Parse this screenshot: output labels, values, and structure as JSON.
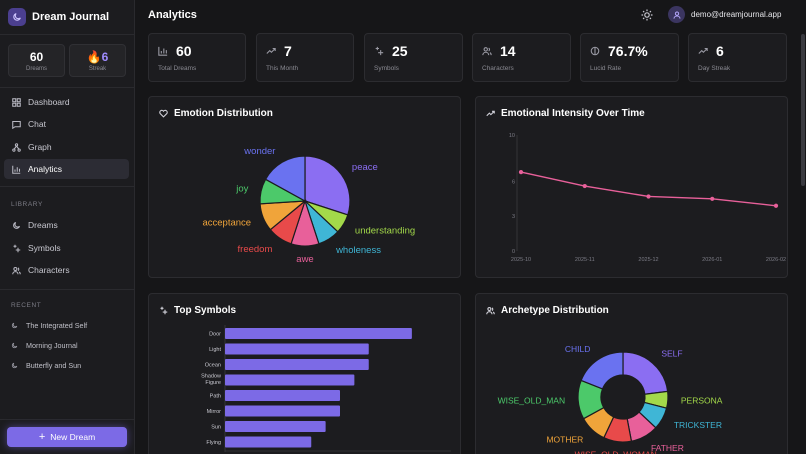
{
  "sidebar": {
    "app_name": "Dream Journal",
    "mini_stats": [
      {
        "value": "60",
        "label": "Dreams"
      },
      {
        "value": "🔥6",
        "label": "Streak"
      }
    ],
    "nav": [
      {
        "label": "Dashboard",
        "icon": "dashboard-icon"
      },
      {
        "label": "Chat",
        "icon": "chat-icon"
      },
      {
        "label": "Graph",
        "icon": "graph-icon"
      },
      {
        "label": "Analytics",
        "icon": "analytics-icon",
        "active": true
      }
    ],
    "library_label": "LIBRARY",
    "library": [
      {
        "label": "Dreams",
        "icon": "moon-icon"
      },
      {
        "label": "Symbols",
        "icon": "sparkles-icon"
      },
      {
        "label": "Characters",
        "icon": "users-icon"
      }
    ],
    "recent_label": "RECENT",
    "recent": [
      "The Integrated Self",
      "Morning Journal",
      "Butterfly and Sun"
    ],
    "new_button": "New Dream"
  },
  "header": {
    "title": "Analytics",
    "user_email": "demo@dreamjournal.app"
  },
  "stats": [
    {
      "value": "60",
      "label": "Total Dreams",
      "icon": "bar-chart-icon"
    },
    {
      "value": "7",
      "label": "This Month",
      "icon": "trending-up-icon"
    },
    {
      "value": "25",
      "label": "Symbols",
      "icon": "sparkles-icon"
    },
    {
      "value": "14",
      "label": "Characters",
      "icon": "users-icon"
    },
    {
      "value": "76.7%",
      "label": "Lucid Rate",
      "icon": "half-circle-icon"
    },
    {
      "value": "6",
      "label": "Day Streak",
      "icon": "trending-up-icon"
    }
  ],
  "panels": {
    "emotion_title": "Emotion Distribution",
    "intensity_title": "Emotional Intensity Over Time",
    "symbols_title": "Top Symbols",
    "archetype_title": "Archetype Distribution"
  },
  "colors": {
    "accent": "#7c6ae6",
    "line": "#e8609a",
    "bar": "#7c6ae6"
  },
  "chart_data": [
    {
      "type": "pie",
      "title": "Emotion Distribution",
      "slices": [
        {
          "label": "peace",
          "value": 30,
          "color": "#8b6ef2"
        },
        {
          "label": "understanding",
          "value": 7,
          "color": "#a3d94a"
        },
        {
          "label": "wholeness",
          "value": 8,
          "color": "#3fb6d6"
        },
        {
          "label": "awe",
          "value": 10,
          "color": "#e8609a"
        },
        {
          "label": "freedom",
          "value": 9,
          "color": "#e84a4a"
        },
        {
          "label": "acceptance",
          "value": 10,
          "color": "#f0a43a"
        },
        {
          "label": "joy",
          "value": 9,
          "color": "#4cc96a"
        },
        {
          "label": "wonder",
          "value": 17,
          "color": "#6a72f0"
        }
      ]
    },
    {
      "type": "line",
      "title": "Emotional Intensity Over Time",
      "x": [
        "2025-10",
        "2025-11",
        "2025-12",
        "2026-01",
        "2026-02"
      ],
      "series": [
        {
          "values": [
            6.8,
            5.6,
            4.7,
            4.5,
            3.9
          ]
        }
      ],
      "ylim": [
        0,
        10
      ],
      "yticks": [
        0,
        3,
        6,
        10
      ]
    },
    {
      "type": "bar",
      "orientation": "horizontal",
      "title": "Top Symbols",
      "categories": [
        "Door",
        "Light",
        "Ocean",
        "Shadow Figure",
        "Path",
        "Mirror",
        "Sun",
        "Flying"
      ],
      "values": [
        13,
        10,
        10,
        9,
        8,
        8,
        7,
        6
      ],
      "xlim": [
        0,
        16
      ]
    },
    {
      "type": "pie",
      "subtype": "donut",
      "title": "Archetype Distribution",
      "slices": [
        {
          "label": "SELF",
          "value": 23,
          "color": "#8b6ef2"
        },
        {
          "label": "PERSONA",
          "value": 6,
          "color": "#a3d94a"
        },
        {
          "label": "TRICKSTER",
          "value": 8,
          "color": "#3fb6d6"
        },
        {
          "label": "FATHER",
          "value": 10,
          "color": "#e8609a"
        },
        {
          "label": "WISE_OLD_WOMAN",
          "value": 10,
          "color": "#e84a4a"
        },
        {
          "label": "MOTHER",
          "value": 10,
          "color": "#f0a43a"
        },
        {
          "label": "WISE_OLD_MAN",
          "value": 14,
          "color": "#4cc96a"
        },
        {
          "label": "CHILD",
          "value": 19,
          "color": "#6a72f0"
        }
      ]
    }
  ]
}
